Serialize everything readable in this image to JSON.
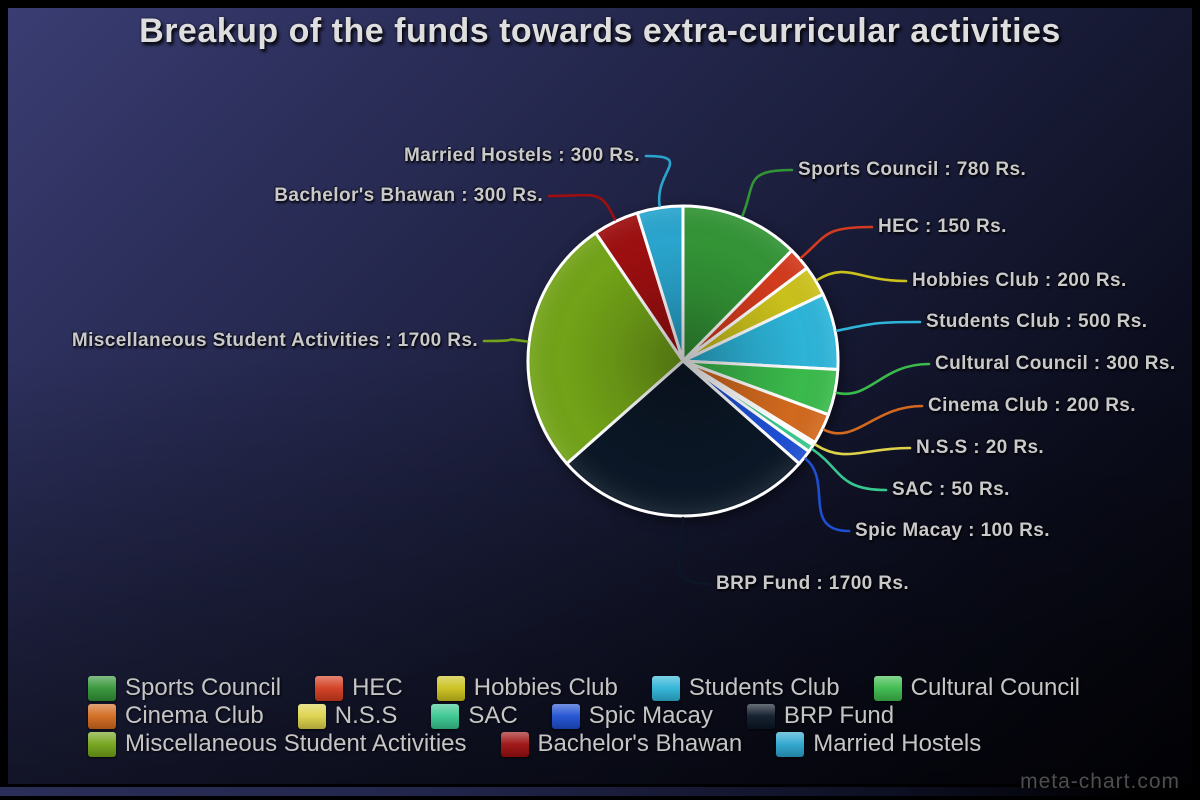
{
  "page": {
    "title": "Breakup of the funds towards extra-curricular activities",
    "watermark": "meta-chart.com"
  },
  "chart_data": {
    "type": "pie",
    "title": "Breakup of the funds towards extra-curricular activities",
    "unit": "Rs.",
    "callout_format": "{label} : {value} Rs.",
    "legend_position": "bottom",
    "legend_rows": [
      [
        "Sports Council",
        "HEC",
        "Hobbies Club",
        "Students Club",
        "Cultural Council"
      ],
      [
        "Cinema Club",
        "N.S.S",
        "SAC",
        "Spic Macay",
        "BRP Fund"
      ],
      [
        "Miscellaneous Student Activities",
        "Bachelor's Bhawan",
        "Married Hostels"
      ]
    ],
    "series": [
      {
        "label": "Sports Council",
        "value": 780,
        "color": "#339436"
      },
      {
        "label": "HEC",
        "value": 150,
        "color": "#d23b1e"
      },
      {
        "label": "Hobbies Club",
        "value": 200,
        "color": "#cbc11c"
      },
      {
        "label": "Students Club",
        "value": 500,
        "color": "#2db4d8"
      },
      {
        "label": "Cultural Council",
        "value": 300,
        "color": "#3bba4c"
      },
      {
        "label": "Cinema Club",
        "value": 200,
        "color": "#d2691e"
      },
      {
        "label": "N.S.S",
        "value": 20,
        "color": "#ddd24a"
      },
      {
        "label": "SAC",
        "value": 50,
        "color": "#38c78f"
      },
      {
        "label": "Spic Macay",
        "value": 100,
        "color": "#1e4fd2"
      },
      {
        "label": "BRP Fund",
        "value": 1700,
        "color": "#0b1726"
      },
      {
        "label": "Miscellaneous Student Activities",
        "value": 1700,
        "color": "#72a318"
      },
      {
        "label": "Bachelor's Bhawan",
        "value": 300,
        "color": "#9d0f10"
      },
      {
        "label": "Married Hostels",
        "value": 300,
        "color": "#2aa5ce"
      }
    ]
  }
}
